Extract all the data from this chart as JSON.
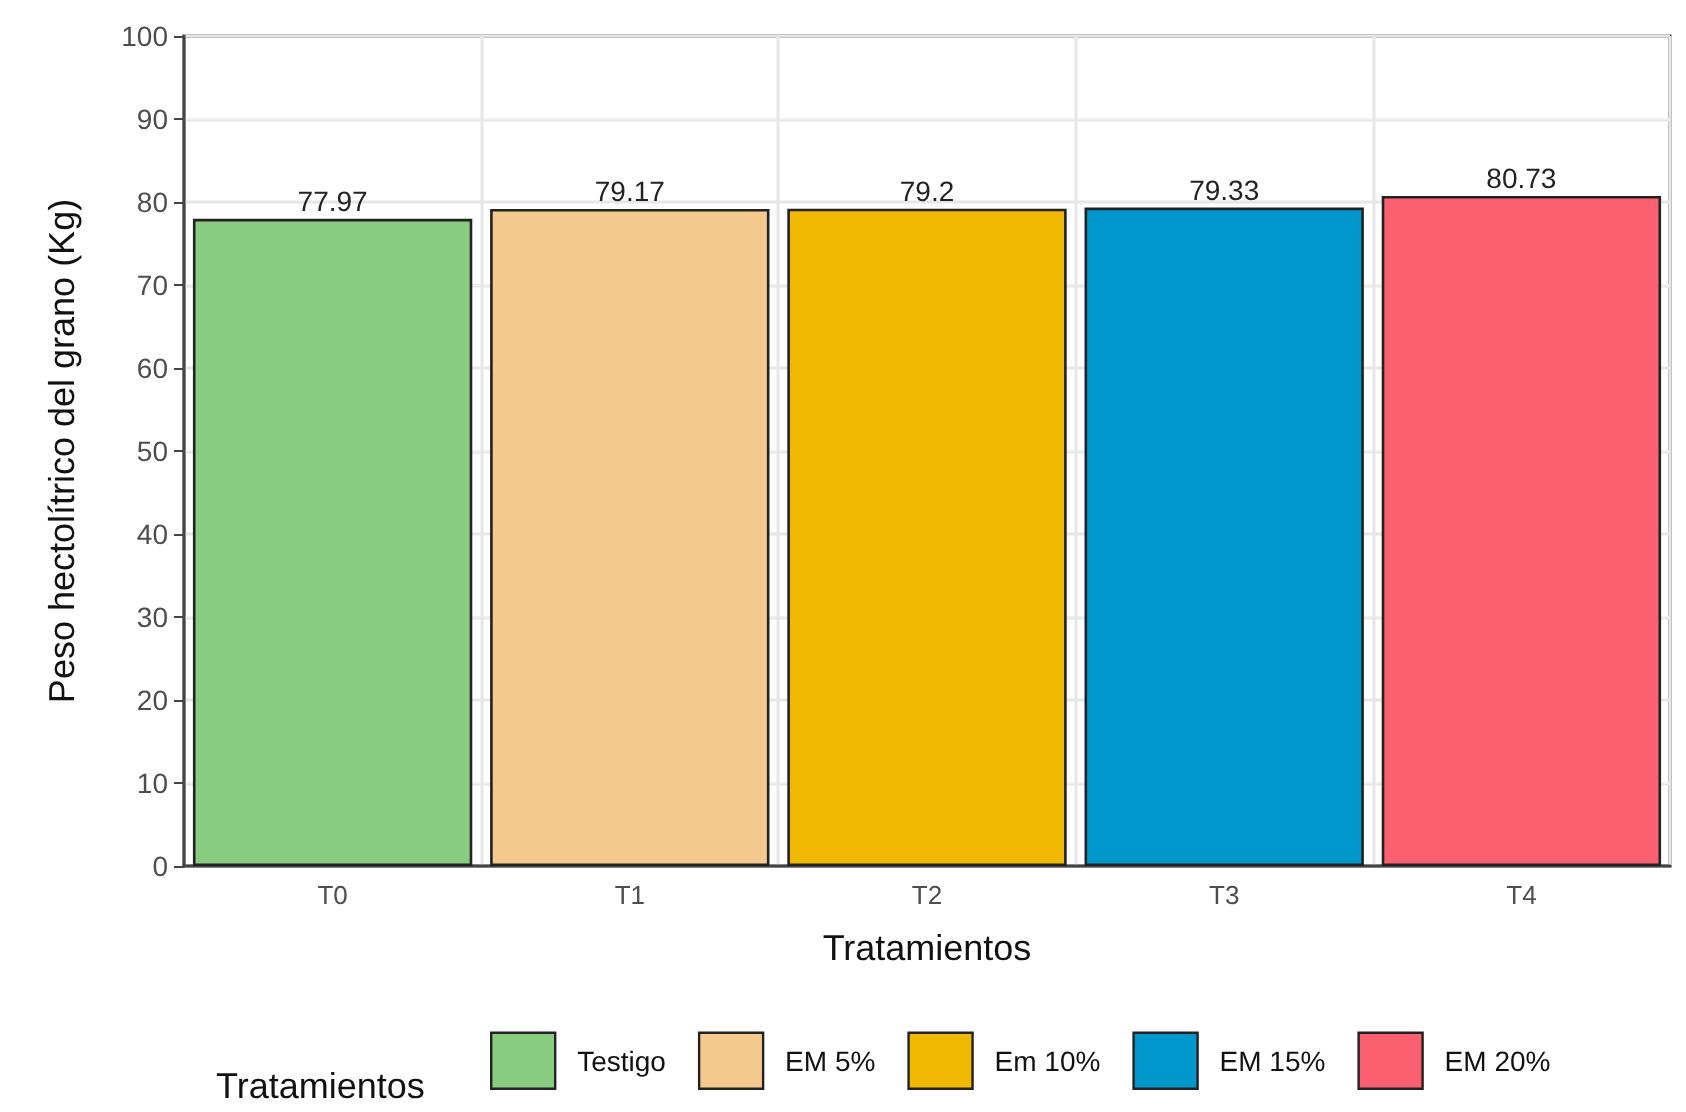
{
  "chart_data": {
    "type": "bar",
    "xlabel": "Tratamientos",
    "ylabel": "Peso hectolítrico del grano (Kg)",
    "legend_title": "Tratamientos",
    "categories": [
      "T0",
      "T1",
      "T2",
      "T3",
      "T4"
    ],
    "series": [
      {
        "name": "Testigo",
        "color": "#88cc7f",
        "values": [
          77.97,
          null,
          null,
          null,
          null
        ]
      },
      {
        "name": "EM 5%",
        "color": "#f3c98d",
        "values": [
          null,
          79.17,
          null,
          null,
          null
        ]
      },
      {
        "name": "Em 10%",
        "color": "#f0b800",
        "values": [
          null,
          null,
          79.2,
          null,
          null
        ]
      },
      {
        "name": "EM 15%",
        "color": "#0097cc",
        "values": [
          null,
          null,
          null,
          79.33,
          null
        ]
      },
      {
        "name": "EM 20%",
        "color": "#fb6071",
        "values": [
          null,
          null,
          null,
          null,
          80.73
        ]
      }
    ],
    "ylim": [
      0,
      100
    ],
    "yticks": [
      0,
      10,
      20,
      30,
      40,
      50,
      60,
      70,
      80,
      90,
      100
    ],
    "grid": true,
    "legend": "bottom",
    "data_labels": true
  }
}
